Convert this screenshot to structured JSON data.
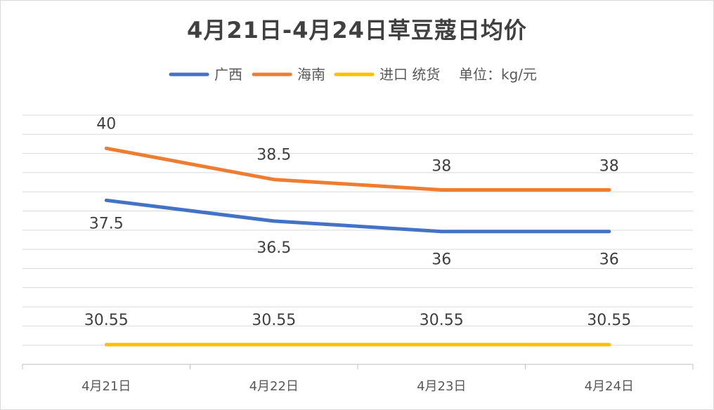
{
  "chart_data": {
    "type": "line",
    "title": "4月21日-4月24日草豆蔻日均价",
    "categories": [
      "4月21日",
      "4月22日",
      "4月23日",
      "4月24日"
    ],
    "unit_note": "单位：kg/元",
    "series": [
      {
        "name": "广西",
        "values": [
          37.5,
          36.5,
          36,
          36
        ],
        "color": "#4472C4"
      },
      {
        "name": "海南",
        "values": [
          40,
          38.5,
          38,
          38
        ],
        "color": "#ED7D31"
      },
      {
        "name": "进口 统货",
        "values": [
          30.55,
          30.55,
          30.55,
          30.55
        ],
        "color": "#FFC000"
      }
    ],
    "ylim": [
      29.6,
      41.6
    ],
    "grid": true,
    "legend": "top"
  }
}
